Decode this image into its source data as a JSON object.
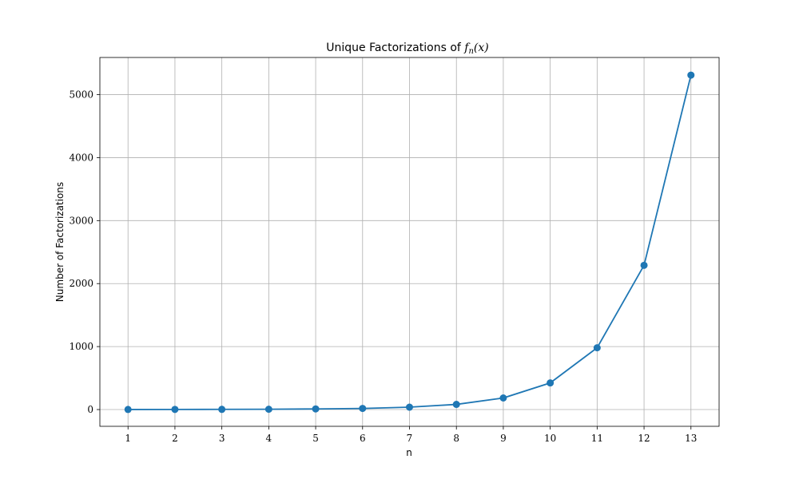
{
  "chart_data": {
    "type": "line",
    "title_prefix": "Unique Factorizations of ",
    "title_func": "f",
    "title_sub": "n",
    "title_arg": "(x)",
    "xlabel": "n",
    "ylabel": "Number of Factorizations",
    "x": [
      1,
      2,
      3,
      4,
      5,
      6,
      7,
      8,
      9,
      10,
      11,
      12,
      13
    ],
    "xticks": [
      1,
      2,
      3,
      4,
      5,
      6,
      7,
      8,
      9,
      10,
      11,
      12,
      13
    ],
    "yticks": [
      0,
      1000,
      2000,
      3000,
      4000,
      5000
    ],
    "xlim": [
      0.4,
      13.6
    ],
    "ylim": [
      -266,
      5590
    ],
    "grid": true,
    "series": [
      {
        "values": [
          1,
          2,
          3,
          5,
          10,
          18,
          38,
          82,
          184,
          423,
          981,
          2290,
          5310
        ],
        "color": "#1f77b4",
        "marker": "circle"
      }
    ]
  }
}
